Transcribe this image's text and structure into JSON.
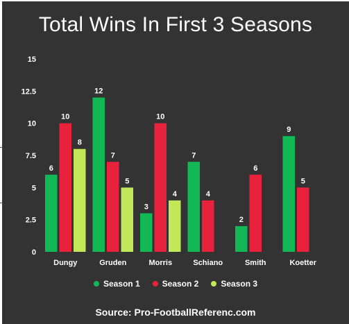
{
  "chart_data": {
    "type": "bar",
    "title": "Total Wins In First 3 Seasons",
    "categories": [
      "Dungy",
      "Gruden",
      "Morris",
      "Schiano",
      "Smith",
      "Koetter"
    ],
    "series": [
      {
        "name": "Season 1",
        "color": "#12b856",
        "values": [
          6,
          12,
          3,
          7,
          2,
          9
        ]
      },
      {
        "name": "Season 2",
        "color": "#e8213c",
        "values": [
          10,
          7,
          10,
          4,
          6,
          5
        ]
      },
      {
        "name": "Season 3",
        "color": "#c2e85a",
        "values": [
          8,
          5,
          4,
          null,
          null,
          null
        ]
      }
    ],
    "y_ticks": [
      "0",
      "2.5",
      "5",
      "7.5",
      "10",
      "12.5",
      "15"
    ],
    "ylim": [
      0,
      15
    ],
    "grid": false,
    "legend": "bottom-center",
    "source": "Source: Pro-FootballReferenc.com"
  }
}
